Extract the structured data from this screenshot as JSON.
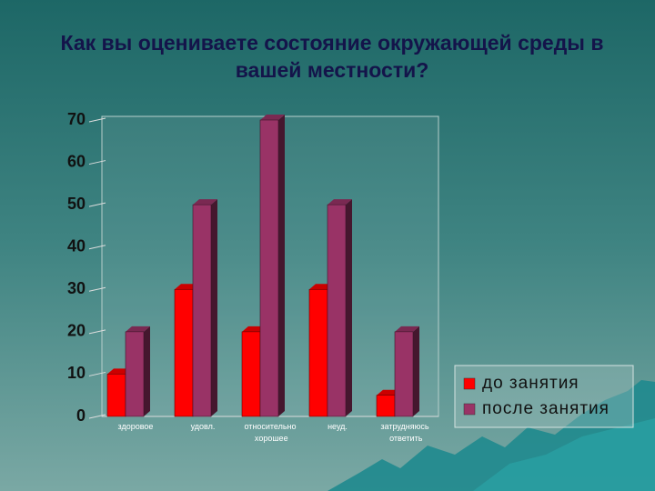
{
  "chart_data": {
    "type": "bar3d",
    "title": "Как вы оцениваете состояние окружающей среды в вашей местности?",
    "categories": [
      "здоровое",
      "удовл.",
      "относительно хорошее",
      "неуд.",
      "затрудняюсь ответить"
    ],
    "series": [
      {
        "name": "до занятия",
        "color": "#ff0000",
        "values": [
          10,
          30,
          20,
          30,
          5
        ]
      },
      {
        "name": "после занятия",
        "color": "#993366",
        "values": [
          20,
          50,
          70,
          50,
          20
        ]
      }
    ],
    "ylim": [
      0,
      70
    ],
    "yticks": [
      0,
      10,
      20,
      30,
      40,
      50,
      60,
      70
    ],
    "legend": "lower-right"
  }
}
